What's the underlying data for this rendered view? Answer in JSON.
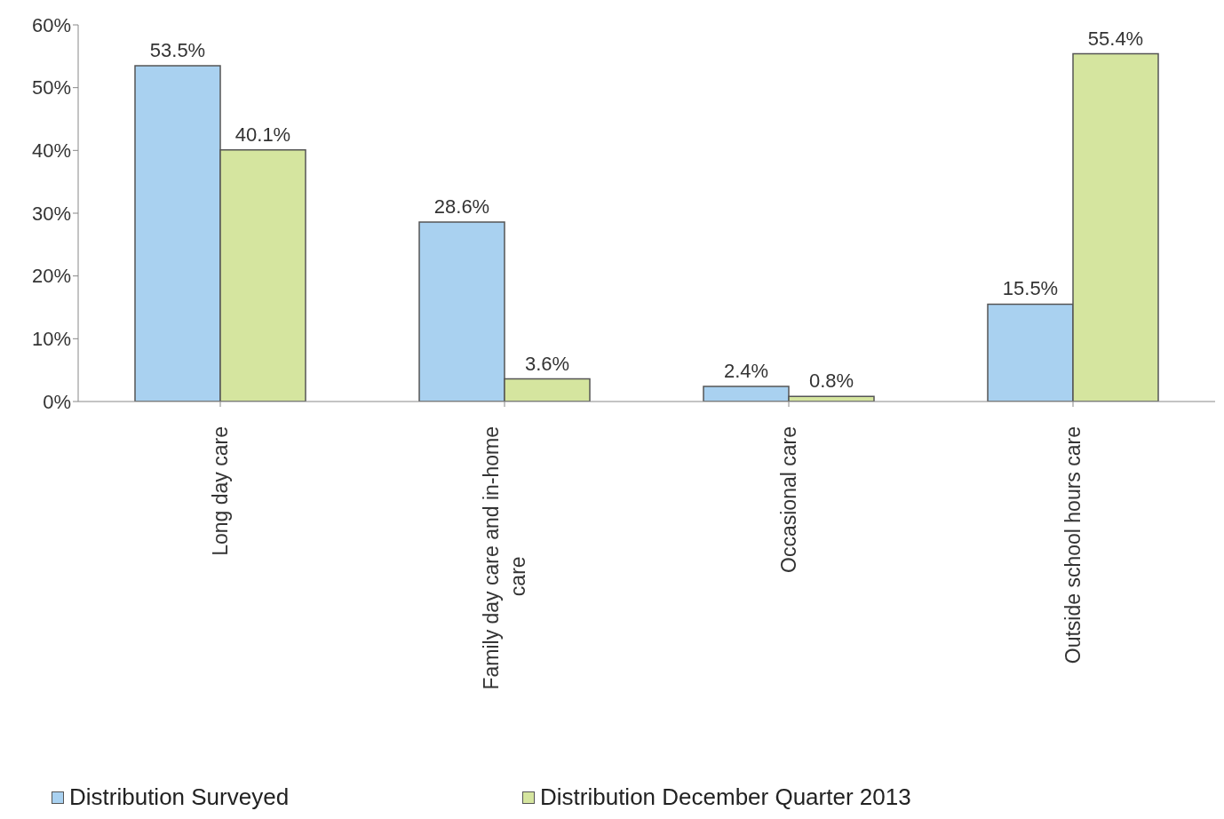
{
  "chart_data": {
    "type": "bar",
    "categories": [
      "Long day care",
      "Family day care and in-home care",
      "Occasional care",
      "Outside school hours care"
    ],
    "series": [
      {
        "name": "Distribution Surveyed",
        "color": "#a9d1f0",
        "values": [
          53.5,
          28.6,
          2.4,
          15.5
        ],
        "value_labels": [
          "53.5%",
          "28.6%",
          "2.4%",
          "15.5%"
        ]
      },
      {
        "name": "Distribution December Quarter 2013",
        "color": "#d5e59f",
        "values": [
          40.1,
          3.6,
          0.8,
          55.4
        ],
        "value_labels": [
          "40.1%",
          "3.6%",
          "0.8%",
          "55.4%"
        ]
      }
    ],
    "ylim": [
      0,
      60
    ],
    "yticks": [
      {
        "value": 0,
        "label": "0%"
      },
      {
        "value": 10,
        "label": "10%"
      },
      {
        "value": 20,
        "label": "20%"
      },
      {
        "value": 30,
        "label": "30%"
      },
      {
        "value": 40,
        "label": "40%"
      },
      {
        "value": 50,
        "label": "50%"
      },
      {
        "value": 60,
        "label": "60%"
      }
    ],
    "grid": false,
    "legend": "bottom"
  }
}
